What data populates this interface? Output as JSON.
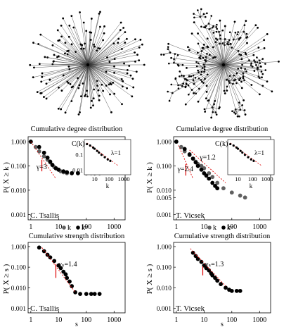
{
  "chart_data": [
    {
      "type": "scatter",
      "panel": "top-left-degree",
      "title": "Cumulative degree distribution",
      "ylabel": "P( X ≥ k )",
      "xlabel": "",
      "xscale": "log",
      "yscale": "log",
      "xlim": [
        0.8,
        2500
      ],
      "ylim": [
        0.0006,
        1.6
      ],
      "xticks": [
        "1",
        "10",
        "100",
        "1000"
      ],
      "yticks": [
        "1.000",
        "0.100",
        "0.010",
        "0.001"
      ],
      "name_label": "C. Tsallis",
      "legend": [
        "k",
        "kʷ"
      ],
      "legend_position": "bottom",
      "annotations": [
        "γ=3",
        "C(k)"
      ],
      "series": [
        {
          "name": "k",
          "color": "#606060",
          "x": [
            1,
            1.5,
            2,
            3,
            4,
            5,
            6,
            7,
            8,
            10,
            12,
            15,
            20,
            30,
            50,
            100,
            150,
            200
          ],
          "y": [
            1.0,
            0.6,
            0.4,
            0.25,
            0.18,
            0.14,
            0.11,
            0.09,
            0.08,
            0.07,
            0.06,
            0.055,
            0.05,
            0.05,
            0.05,
            0.05,
            0.05,
            0.05
          ]
        },
        {
          "name": "kʷ",
          "color": "#000000",
          "x": [
            1,
            2,
            3,
            4,
            5,
            6,
            8,
            10,
            15,
            20,
            30,
            50,
            100,
            200,
            300
          ],
          "y": [
            1.0,
            0.6,
            0.35,
            0.22,
            0.15,
            0.11,
            0.08,
            0.07,
            0.06,
            0.055,
            0.05,
            0.05,
            0.05,
            0.05,
            0.05
          ]
        }
      ],
      "inset": {
        "ylabel": "C(k)",
        "xlabel": "k",
        "annotation": "λ=1",
        "xticks": [
          "10",
          "100",
          "1000"
        ],
        "yticks": [
          "0.1",
          "0.01"
        ],
        "x": [
          3,
          5,
          8,
          10,
          15,
          20,
          30,
          50,
          80,
          120
        ],
        "y": [
          0.5,
          0.4,
          0.3,
          0.25,
          0.18,
          0.14,
          0.1,
          0.07,
          0.05,
          0.04
        ]
      }
    },
    {
      "type": "scatter",
      "panel": "top-right-degree",
      "title": "Cumulative degree distribution",
      "ylabel": "P( X ≥ k )",
      "xlabel": "",
      "xscale": "log",
      "yscale": "log",
      "xlim": [
        0.8,
        2500
      ],
      "ylim": [
        0.0006,
        1.6
      ],
      "xticks": [
        "1",
        "10",
        "100",
        "1000"
      ],
      "yticks": [
        "1.000",
        "0.100",
        "0.010",
        "0.005",
        "0.001"
      ],
      "name_label": "T. Vicsek",
      "legend": [
        "k",
        "kʷ"
      ],
      "legend_position": "bottom",
      "annotations": [
        "γ=2.4",
        "γ=1.2",
        "C(k)"
      ],
      "series": [
        {
          "name": "k",
          "color": "#606060",
          "x": [
            1,
            1.5,
            2,
            3,
            4,
            5,
            6,
            8,
            10,
            15,
            20,
            30,
            50,
            100,
            200,
            300
          ],
          "y": [
            1.0,
            0.6,
            0.4,
            0.28,
            0.2,
            0.15,
            0.12,
            0.1,
            0.08,
            0.05,
            0.035,
            0.02,
            0.012,
            0.008,
            0.006,
            0.005
          ]
        },
        {
          "name": "kʷ",
          "color": "#000000",
          "x": [
            1,
            2,
            3,
            4,
            5,
            6,
            8,
            10,
            12,
            15,
            20,
            25,
            30
          ],
          "y": [
            1.0,
            0.5,
            0.3,
            0.2,
            0.14,
            0.1,
            0.07,
            0.05,
            0.04,
            0.03,
            0.02,
            0.015,
            0.012
          ]
        }
      ],
      "inset": {
        "ylabel": "C(k)",
        "xlabel": "k",
        "annotation": "λ=1",
        "xticks": [
          "10",
          "100",
          "1000"
        ],
        "yticks": [],
        "x": [
          3,
          5,
          8,
          10,
          15,
          20,
          30,
          50,
          80,
          120
        ],
        "y": [
          0.5,
          0.4,
          0.3,
          0.25,
          0.18,
          0.14,
          0.1,
          0.07,
          0.05,
          0.04
        ]
      }
    },
    {
      "type": "scatter",
      "panel": "bottom-left-strength",
      "title": "Cumulative strength distribution",
      "ylabel": "P( X ≥ s )",
      "xlabel": "s",
      "xscale": "log",
      "yscale": "log",
      "xlim": [
        0.8,
        2500
      ],
      "ylim": [
        0.0006,
        1.6
      ],
      "xticks": [
        "1",
        "10",
        "100",
        "1000"
      ],
      "yticks": [
        "1.000",
        "0.100",
        "0.010",
        "0.001"
      ],
      "name_label": "C. Tsallis",
      "annotations": [
        "γₛ=1.4"
      ],
      "series": [
        {
          "name": "s",
          "color": "#000000",
          "x": [
            2,
            3,
            4,
            5,
            7,
            10,
            12,
            15,
            18,
            20,
            25,
            30,
            40,
            60,
            100,
            150,
            200,
            300
          ],
          "y": [
            0.9,
            0.6,
            0.4,
            0.3,
            0.2,
            0.12,
            0.09,
            0.06,
            0.045,
            0.03,
            0.02,
            0.012,
            0.006,
            0.005,
            0.005,
            0.005,
            0.005,
            0.005
          ]
        }
      ]
    },
    {
      "type": "scatter",
      "panel": "bottom-right-strength",
      "title": "Cumulative strength distribution",
      "ylabel": "P( X ≥ s )",
      "xlabel": "s",
      "xscale": "log",
      "yscale": "log",
      "xlim": [
        0.8,
        2500
      ],
      "ylim": [
        0.0006,
        1.6
      ],
      "xticks": [
        "1",
        "10",
        "100",
        "1000"
      ],
      "yticks": [
        "1.000",
        "0.100",
        "0.010",
        "0.001"
      ],
      "name_label": "T. Vicsek",
      "annotations": [
        "γₛ=1.3"
      ],
      "series": [
        {
          "name": "s",
          "color": "#000000",
          "x": [
            4,
            5,
            6,
            8,
            10,
            12,
            15,
            18,
            20,
            25,
            30,
            40,
            60,
            80,
            100,
            150,
            200
          ],
          "y": [
            0.5,
            0.35,
            0.25,
            0.18,
            0.12,
            0.09,
            0.07,
            0.05,
            0.04,
            0.03,
            0.022,
            0.015,
            0.01,
            0.008,
            0.007,
            0.007,
            0.007
          ]
        }
      ]
    }
  ]
}
